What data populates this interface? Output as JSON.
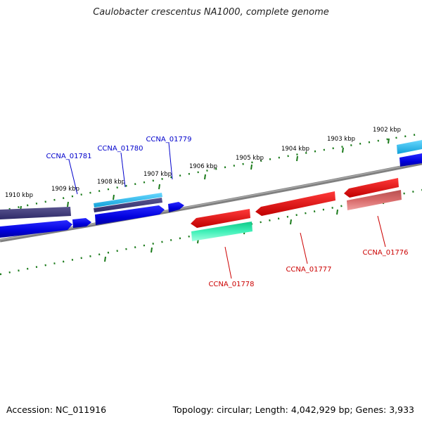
{
  "title": "Caulobacter crescentus NA1000, complete genome",
  "footer": {
    "accession": "Accession: NC_011916",
    "summary": "Topology: circular; Length: 4,042,929 bp; Genes: 3,933"
  },
  "ticks": [
    "1902 kbp",
    "1903 kbp",
    "1904 kbp",
    "1905 kbp",
    "1906 kbp",
    "1907 kbp",
    "1908 kbp",
    "1909 kbp",
    "1910 kbp"
  ],
  "gene_labels": {
    "g1781": "CCNA_01781",
    "g1780": "CCNA_01780",
    "g1779": "CCNA_01779",
    "g1778": "CCNA_01778",
    "g1777": "CCNA_01777",
    "g1776": "CCNA_01776"
  },
  "colors": {
    "forward_cds": "#0000ee",
    "forward_other": "#3f3a7a",
    "forward_light": "#20b8e8",
    "reverse_cds": "#ee0000",
    "reverse_other": "#c85a5a",
    "reverse_light": "#20e8a8",
    "backbone": "#808080",
    "tick": "#1a7a1a",
    "forward_label": "#0000cc",
    "reverse_label": "#cc0000"
  }
}
